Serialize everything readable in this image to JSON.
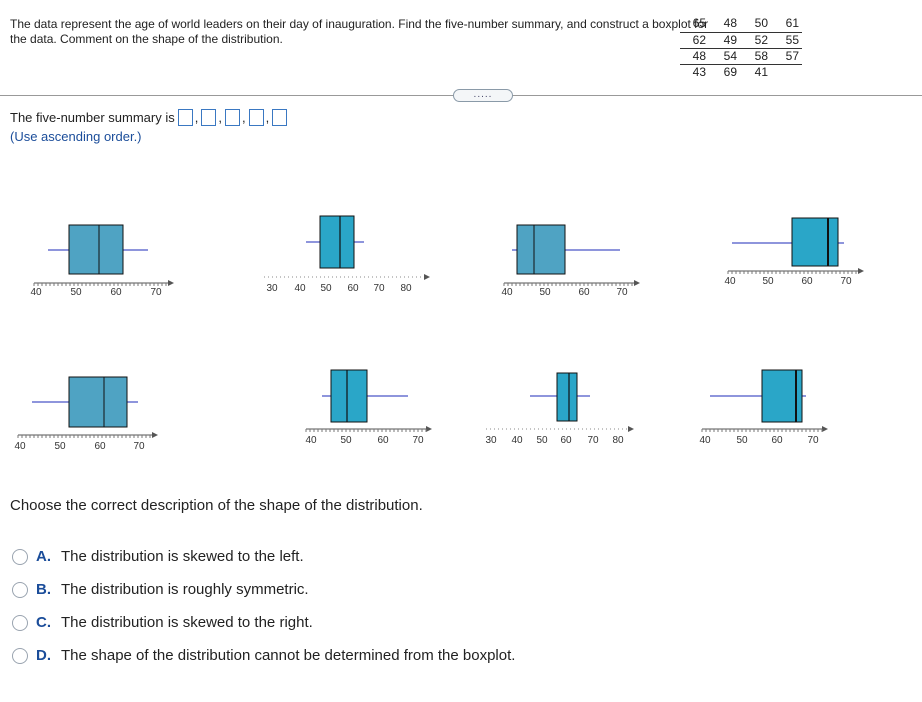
{
  "problem": {
    "text": "The data represent the age of world leaders on their day of inauguration. Find the five-number summary, and construct a boxplot for the data. Comment on the shape of the distribution."
  },
  "data_table": {
    "rows": [
      [
        "65",
        "48",
        "50",
        "61"
      ],
      [
        "62",
        "49",
        "52",
        "55"
      ],
      [
        "48",
        "54",
        "58",
        "57"
      ],
      [
        "43",
        "69",
        "41",
        ""
      ]
    ]
  },
  "expander": {
    "label": "....."
  },
  "summary": {
    "prefix": "The five-number summary is",
    "hint": "(Use ascending order.)",
    "separator": ","
  },
  "boxplot_options": [
    {
      "axis_labels": [
        "40",
        "50",
        "60",
        "70"
      ]
    },
    {
      "axis_labels": [
        "30",
        "40",
        "50",
        "60",
        "70",
        "80"
      ]
    },
    {
      "axis_labels": [
        "40",
        "50",
        "60",
        "70"
      ]
    },
    {
      "axis_labels": [
        "40",
        "50",
        "60",
        "70"
      ]
    },
    {
      "axis_labels": [
        "40",
        "50",
        "60",
        "70"
      ]
    },
    {
      "axis_labels": [
        "40",
        "50",
        "60",
        "70"
      ]
    },
    {
      "axis_labels": [
        "30",
        "40",
        "50",
        "60",
        "70",
        "80"
      ]
    },
    {
      "axis_labels": [
        "40",
        "50",
        "60",
        "70"
      ]
    }
  ],
  "question": {
    "text": "Choose the correct description of the shape of the distribution."
  },
  "choices": [
    {
      "letter": "A.",
      "text": "The distribution is skewed to the left."
    },
    {
      "letter": "B.",
      "text": "The distribution is roughly symmetric."
    },
    {
      "letter": "C.",
      "text": "The distribution is skewed to the right."
    },
    {
      "letter": "D.",
      "text": "The shape of the distribution cannot be determined from the boxplot."
    }
  ],
  "colors": {
    "box_light": "#4fa3c3",
    "box_bright": "#2aa6c8",
    "whisker": "#1c2bb8",
    "accent": "#1b4d9a"
  }
}
